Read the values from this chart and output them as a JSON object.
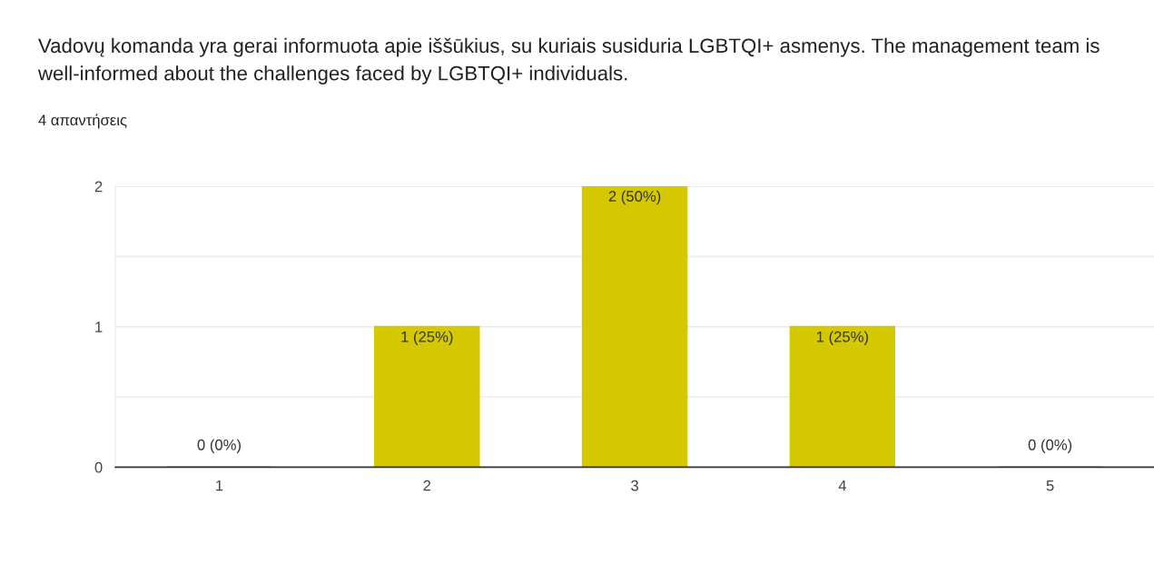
{
  "chart_data": {
    "type": "bar",
    "title": "Vadovų komanda yra gerai informuota apie iššūkius, su kuriais susiduria LGBTQI+ asmenys. The management team is well-informed about the challenges faced by LGBTQI+ individuals.",
    "subtitle": "4 απαντήσεις",
    "categories": [
      "1",
      "2",
      "3",
      "4",
      "5"
    ],
    "values": [
      0,
      1,
      2,
      1,
      0
    ],
    "value_labels": [
      "0 (0%)",
      "1 (25%)",
      "2 (50%)",
      "1 (25%)",
      "0 (0%)"
    ],
    "color": "#d4c900",
    "ylim": [
      0,
      2
    ],
    "yticks": [
      0,
      {
        "value": 0.5,
        "label": null
      },
      1,
      {
        "value": 1.5,
        "label": null
      },
      2
    ],
    "grid": "y"
  }
}
